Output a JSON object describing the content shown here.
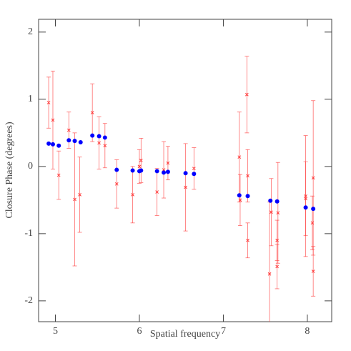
{
  "chart_data": {
    "type": "scatter",
    "x_label": "Spatial frequency",
    "y_label": "Closure Phase (degrees)",
    "xlim": [
      4.8,
      8.29
    ],
    "ylim": [
      -2.31,
      2.19
    ],
    "xticks": [
      5,
      6,
      7,
      8
    ],
    "yticks": [
      -2,
      -1,
      0,
      1,
      2
    ],
    "series": [
      {
        "color": "#ff3b3b",
        "marker": "cross",
        "x": [
          4.92,
          4.97,
          5.04,
          5.16,
          5.23,
          5.29,
          5.44,
          5.52,
          5.59,
          5.73,
          5.92,
          6.0,
          6.02,
          6.21,
          6.29,
          6.34,
          6.55,
          6.65,
          7.19,
          7.2,
          7.28,
          7.29,
          7.29,
          7.55,
          7.57,
          7.64,
          7.65,
          7.64,
          7.98,
          7.98,
          8.06,
          8.07,
          8.07
        ],
        "values": [
          0.95,
          0.69,
          -0.13,
          0.54,
          -0.49,
          -0.42,
          0.8,
          0.35,
          0.31,
          -0.26,
          -0.42,
          0.0,
          0.09,
          -0.38,
          -0.05,
          0.05,
          -0.31,
          -0.03,
          0.14,
          -0.5,
          1.07,
          -0.14,
          -1.1,
          -1.6,
          -0.68,
          -1.49,
          -0.69,
          -1.1,
          -0.44,
          -0.48,
          -0.84,
          -0.17,
          -1.56
        ],
        "errors": [
          0.38,
          0.73,
          0.36,
          0.27,
          0.99,
          0.56,
          0.43,
          0.39,
          0.33,
          0.36,
          0.42,
          0.25,
          0.33,
          0.35,
          0.42,
          0.25,
          0.65,
          0.31,
          0.67,
          0.38,
          0.57,
          0.39,
          0.26,
          1.07,
          0.5,
          0.33,
          0.75,
          0.3,
          0.9,
          0.55,
          0.4,
          1.15,
          0.37
        ]
      },
      {
        "color": "#0000ff",
        "marker": "dot",
        "x": [
          4.92,
          4.97,
          5.04,
          5.16,
          5.23,
          5.3,
          5.44,
          5.52,
          5.59,
          5.73,
          5.92,
          6.0,
          6.02,
          6.21,
          6.29,
          6.34,
          6.55,
          6.65,
          7.19,
          7.29,
          7.56,
          7.64,
          7.98,
          8.07
        ],
        "values": [
          0.34,
          0.33,
          0.31,
          0.39,
          0.38,
          0.36,
          0.46,
          0.45,
          0.43,
          -0.05,
          -0.06,
          -0.07,
          -0.06,
          -0.07,
          -0.09,
          -0.08,
          -0.1,
          -0.11,
          -0.43,
          -0.44,
          -0.51,
          -0.52,
          -0.61,
          -0.63
        ]
      }
    ]
  }
}
